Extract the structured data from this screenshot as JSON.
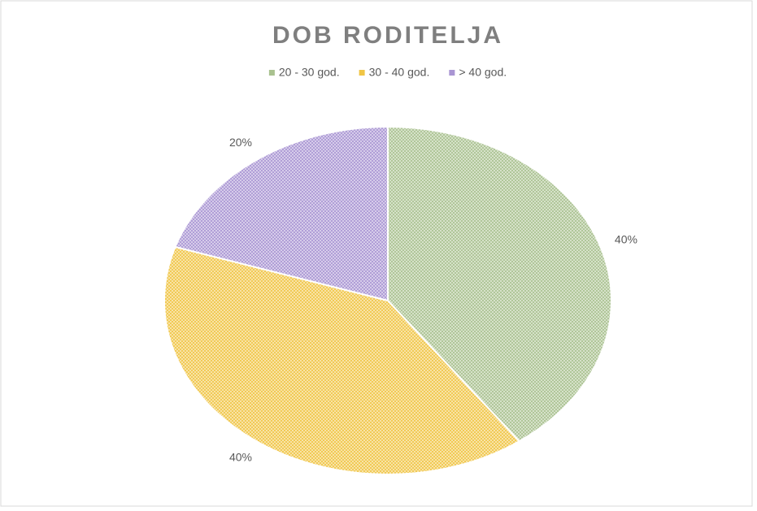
{
  "chart_data": {
    "type": "pie",
    "title": "DOB RODITELJA",
    "categories": [
      "20 - 30 god.",
      "30 - 40 god.",
      "> 40 god."
    ],
    "values": [
      40,
      40,
      20
    ],
    "value_labels": [
      "40%",
      "40%",
      "20%"
    ],
    "colors": [
      "#a9c18f",
      "#f0c545",
      "#a995d3"
    ],
    "legend": "top"
  }
}
